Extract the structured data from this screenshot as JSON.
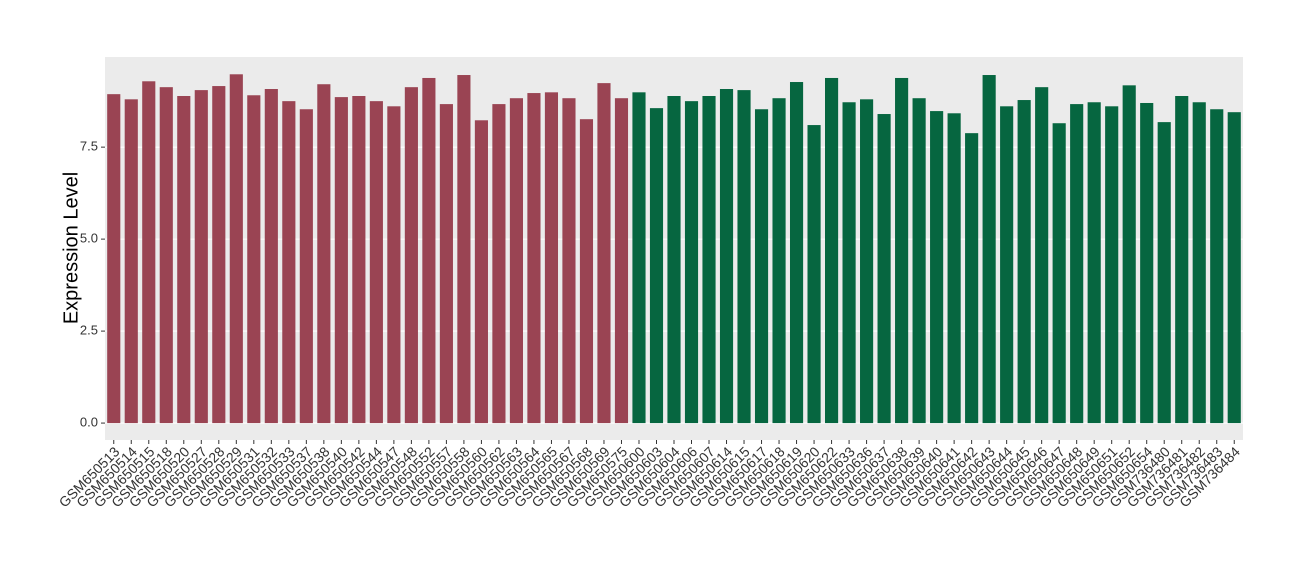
{
  "chart_data": {
    "type": "bar",
    "y_label": "Expression Level",
    "categories": [
      "GSM650513",
      "GSM650514",
      "GSM650515",
      "GSM650518",
      "GSM650520",
      "GSM650527",
      "GSM650528",
      "GSM650529",
      "GSM650531",
      "GSM650532",
      "GSM650533",
      "GSM650537",
      "GSM650538",
      "GSM650540",
      "GSM650542",
      "GSM650544",
      "GSM650547",
      "GSM650548",
      "GSM650552",
      "GSM650557",
      "GSM650558",
      "GSM650560",
      "GSM650562",
      "GSM650563",
      "GSM650564",
      "GSM650565",
      "GSM650567",
      "GSM650568",
      "GSM650569",
      "GSM650575",
      "GSM650600",
      "GSM650603",
      "GSM650604",
      "GSM650606",
      "GSM650607",
      "GSM650614",
      "GSM650615",
      "GSM650617",
      "GSM650618",
      "GSM650619",
      "GSM650620",
      "GSM650622",
      "GSM650633",
      "GSM650636",
      "GSM650637",
      "GSM650638",
      "GSM650639",
      "GSM650640",
      "GSM650641",
      "GSM650642",
      "GSM650643",
      "GSM650644",
      "GSM650645",
      "GSM650646",
      "GSM650647",
      "GSM650648",
      "GSM650649",
      "GSM650651",
      "GSM650652",
      "GSM650654",
      "GSM736480",
      "GSM736481",
      "GSM736482",
      "GSM736483",
      "GSM736484"
    ],
    "values": [
      8.94,
      8.8,
      9.29,
      9.13,
      8.89,
      9.05,
      9.16,
      9.48,
      8.91,
      9.08,
      8.75,
      8.53,
      9.21,
      8.86,
      8.89,
      8.75,
      8.61,
      9.13,
      9.38,
      8.67,
      9.46,
      8.23,
      8.67,
      8.83,
      8.97,
      8.99,
      8.83,
      8.26,
      9.24,
      8.83,
      8.99,
      8.56,
      8.89,
      8.75,
      8.89,
      9.08,
      9.05,
      8.53,
      8.83,
      9.27,
      8.1,
      9.38,
      8.72,
      8.8,
      8.4,
      9.38,
      8.83,
      8.48,
      8.42,
      7.88,
      9.46,
      8.61,
      8.78,
      9.13,
      8.15,
      8.67,
      8.72,
      8.61,
      9.18,
      8.7,
      8.18,
      8.89,
      8.72,
      8.53,
      8.45
    ],
    "colors": [
      "#9a4453",
      "#9a4453",
      "#9a4453",
      "#9a4453",
      "#9a4453",
      "#9a4453",
      "#9a4453",
      "#9a4453",
      "#9a4453",
      "#9a4453",
      "#9a4453",
      "#9a4453",
      "#9a4453",
      "#9a4453",
      "#9a4453",
      "#9a4453",
      "#9a4453",
      "#9a4453",
      "#9a4453",
      "#9a4453",
      "#9a4453",
      "#9a4453",
      "#9a4453",
      "#9a4453",
      "#9a4453",
      "#9a4453",
      "#9a4453",
      "#9a4453",
      "#9a4453",
      "#9a4453",
      "#066640",
      "#066640",
      "#066640",
      "#066640",
      "#066640",
      "#066640",
      "#066640",
      "#066640",
      "#066640",
      "#066640",
      "#066640",
      "#066640",
      "#066640",
      "#066640",
      "#066640",
      "#066640",
      "#066640",
      "#066640",
      "#066640",
      "#066640",
      "#066640",
      "#066640",
      "#066640",
      "#066640",
      "#066640",
      "#066640",
      "#066640",
      "#066640",
      "#066640",
      "#066640",
      "#066640",
      "#066640",
      "#066640",
      "#066640",
      "#066640"
    ],
    "ylim": [
      -0.46,
      9.95
    ],
    "yticks": [
      {
        "value": 0,
        "label": "0.0"
      },
      {
        "value": 2.5,
        "label": "2.5"
      },
      {
        "value": 5,
        "label": "5.0"
      },
      {
        "value": 7.5,
        "label": "7.5"
      }
    ],
    "grid": true
  }
}
